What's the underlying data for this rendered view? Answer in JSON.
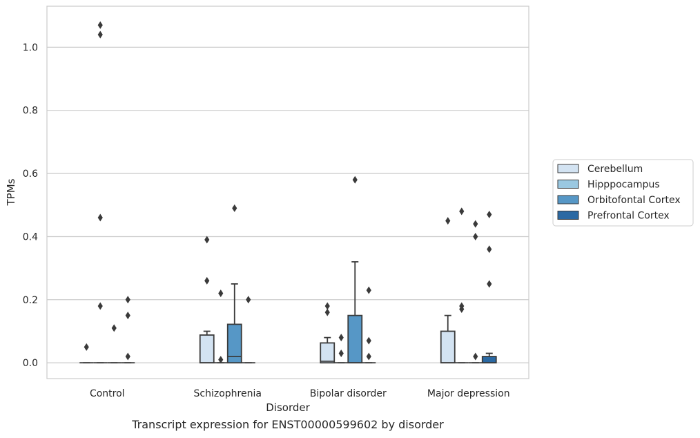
{
  "chart_data": {
    "type": "box",
    "categories": [
      "Control",
      "Schizophrenia",
      "Bipolar disorder",
      "Major depression"
    ],
    "xlabel": "Disorder",
    "ylabel": "TPMs",
    "ylim": [
      -0.05,
      1.13
    ],
    "yticks": [
      0.0,
      0.2,
      0.4,
      0.6,
      0.8,
      1.0
    ],
    "ytick_labels": [
      "0.0",
      "0.2",
      "0.4",
      "0.6",
      "0.8",
      "1.0"
    ],
    "grid": "horizontal",
    "legend_position": "right",
    "series": [
      {
        "name": "Cerebellum",
        "color": "#d3e3f2",
        "boxes": [
          {
            "q1": 0,
            "median": 0,
            "q3": 0,
            "whisker_low": 0,
            "whisker_high": 0,
            "outliers": [
              0.05
            ]
          },
          {
            "q1": 0,
            "median": 0,
            "q3": 0.088,
            "whisker_low": 0,
            "whisker_high": 0.1,
            "outliers": [
              0.39,
              0.26
            ]
          },
          {
            "q1": 0,
            "median": 0.005,
            "q3": 0.063,
            "whisker_low": 0,
            "whisker_high": 0.08,
            "outliers": [
              0.18,
              0.16
            ]
          },
          {
            "q1": 0,
            "median": 0,
            "q3": 0.1,
            "whisker_low": 0,
            "whisker_high": 0.15,
            "outliers": [
              0.45
            ]
          }
        ]
      },
      {
        "name": "Hipppocampus",
        "color": "#9ac8e1",
        "boxes": [
          {
            "q1": 0,
            "median": 0,
            "q3": 0,
            "whisker_low": 0,
            "whisker_high": 0,
            "outliers": [
              1.07,
              1.04,
              0.46,
              0.18
            ]
          },
          {
            "q1": 0,
            "median": 0,
            "q3": 0,
            "whisker_low": 0,
            "whisker_high": 0,
            "outliers": [
              0.22,
              0.01
            ]
          },
          {
            "q1": 0,
            "median": 0,
            "q3": 0,
            "whisker_low": 0,
            "whisker_high": 0,
            "outliers": [
              0.08,
              0.03
            ]
          },
          {
            "q1": 0,
            "median": 0,
            "q3": 0,
            "whisker_low": 0,
            "whisker_high": 0,
            "outliers": [
              0.48,
              0.18,
              0.17
            ]
          }
        ]
      },
      {
        "name": "Orbitofontal Cortex",
        "color": "#5697c6",
        "boxes": [
          {
            "q1": 0,
            "median": 0,
            "q3": 0,
            "whisker_low": 0,
            "whisker_high": 0,
            "outliers": [
              0.11
            ]
          },
          {
            "q1": 0,
            "median": 0.02,
            "q3": 0.122,
            "whisker_low": 0,
            "whisker_high": 0.25,
            "outliers": [
              0.49
            ]
          },
          {
            "q1": 0,
            "median": 0,
            "q3": 0.15,
            "whisker_low": 0,
            "whisker_high": 0.32,
            "outliers": [
              0.58
            ]
          },
          {
            "q1": 0,
            "median": 0,
            "q3": 0,
            "whisker_low": 0,
            "whisker_high": 0,
            "outliers": [
              0.44,
              0.4,
              0.02
            ]
          }
        ]
      },
      {
        "name": "Prefrontal Cortex",
        "color": "#2b69a3",
        "boxes": [
          {
            "q1": 0,
            "median": 0,
            "q3": 0,
            "whisker_low": 0,
            "whisker_high": 0,
            "outliers": [
              0.2,
              0.15,
              0.02
            ]
          },
          {
            "q1": 0,
            "median": 0,
            "q3": 0,
            "whisker_low": 0,
            "whisker_high": 0,
            "outliers": [
              0.2
            ]
          },
          {
            "q1": 0,
            "median": 0,
            "q3": 0,
            "whisker_low": 0,
            "whisker_high": 0,
            "outliers": [
              0.23,
              0.07,
              0.02
            ]
          },
          {
            "q1": 0,
            "median": 0,
            "q3": 0.02,
            "whisker_low": 0,
            "whisker_high": 0.03,
            "outliers": [
              0.47,
              0.36,
              0.25
            ]
          }
        ]
      }
    ]
  },
  "caption": "Transcript expression for ENST00000599602 by disorder"
}
